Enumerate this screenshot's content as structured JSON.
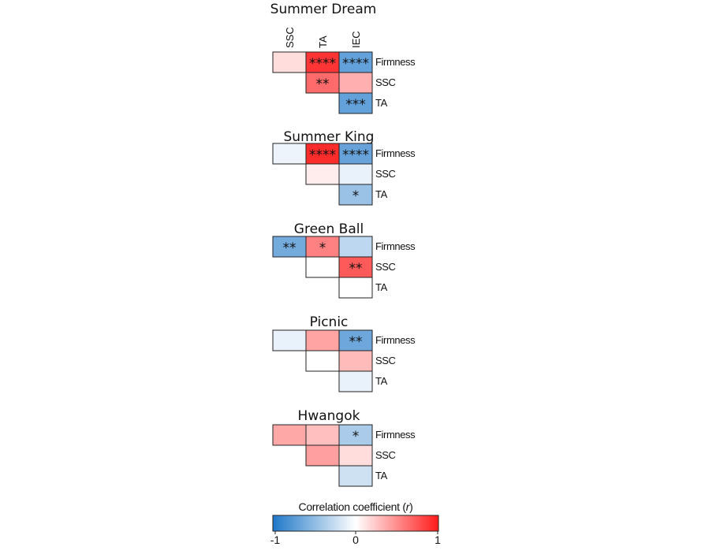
{
  "chart_data": {
    "type": "heatmap",
    "columns": [
      "SSC",
      "TA",
      "IEC"
    ],
    "rows": [
      "Firmness",
      "SSC",
      "TA"
    ],
    "panels": [
      {
        "title": "Summer Dream",
        "cells": [
          {
            "row": 0,
            "col": 0,
            "r": 0.15,
            "sig": ""
          },
          {
            "row": 0,
            "col": 1,
            "r": 0.88,
            "sig": "****"
          },
          {
            "row": 0,
            "col": 2,
            "r": -0.7,
            "sig": "****"
          },
          {
            "row": 1,
            "col": 1,
            "r": 0.65,
            "sig": "**"
          },
          {
            "row": 1,
            "col": 2,
            "r": 0.35,
            "sig": ""
          },
          {
            "row": 2,
            "col": 2,
            "r": -0.7,
            "sig": "***"
          }
        ]
      },
      {
        "title": "Summer King",
        "cells": [
          {
            "row": 0,
            "col": 0,
            "r": -0.08,
            "sig": ""
          },
          {
            "row": 0,
            "col": 1,
            "r": 0.92,
            "sig": "****"
          },
          {
            "row": 0,
            "col": 2,
            "r": -0.68,
            "sig": "****"
          },
          {
            "row": 1,
            "col": 1,
            "r": 0.08,
            "sig": ""
          },
          {
            "row": 1,
            "col": 2,
            "r": -0.1,
            "sig": ""
          },
          {
            "row": 2,
            "col": 2,
            "r": -0.45,
            "sig": "*"
          }
        ]
      },
      {
        "title": "Green Ball",
        "cells": [
          {
            "row": 0,
            "col": 0,
            "r": -0.62,
            "sig": "**"
          },
          {
            "row": 0,
            "col": 1,
            "r": 0.55,
            "sig": "*"
          },
          {
            "row": 0,
            "col": 2,
            "r": -0.3,
            "sig": ""
          },
          {
            "row": 1,
            "col": 1,
            "r": 0.0,
            "sig": ""
          },
          {
            "row": 1,
            "col": 2,
            "r": 0.72,
            "sig": "**"
          },
          {
            "row": 2,
            "col": 2,
            "r": 0.0,
            "sig": ""
          }
        ]
      },
      {
        "title": "Picnic",
        "cells": [
          {
            "row": 0,
            "col": 0,
            "r": -0.1,
            "sig": ""
          },
          {
            "row": 0,
            "col": 1,
            "r": 0.4,
            "sig": ""
          },
          {
            "row": 0,
            "col": 2,
            "r": -0.65,
            "sig": "**"
          },
          {
            "row": 1,
            "col": 1,
            "r": 0.0,
            "sig": ""
          },
          {
            "row": 1,
            "col": 2,
            "r": 0.3,
            "sig": ""
          },
          {
            "row": 2,
            "col": 2,
            "r": -0.1,
            "sig": ""
          }
        ]
      },
      {
        "title": "Hwangok",
        "cells": [
          {
            "row": 0,
            "col": 0,
            "r": 0.38,
            "sig": ""
          },
          {
            "row": 0,
            "col": 1,
            "r": 0.28,
            "sig": ""
          },
          {
            "row": 0,
            "col": 2,
            "r": -0.38,
            "sig": "*"
          },
          {
            "row": 1,
            "col": 1,
            "r": 0.42,
            "sig": ""
          },
          {
            "row": 1,
            "col": 2,
            "r": 0.15,
            "sig": ""
          },
          {
            "row": 2,
            "col": 2,
            "r": -0.22,
            "sig": ""
          }
        ]
      }
    ],
    "colorbar": {
      "title": "Correlation coefficient (r)",
      "title_text": "Correlation coefficient ",
      "title_var": "r",
      "range": [
        -1,
        1
      ],
      "ticks": [
        "-1",
        "0",
        "1"
      ],
      "colors": {
        "negative": "#1f78c8",
        "zero": "#ffffff",
        "positive": "#ff1a1a"
      }
    }
  }
}
